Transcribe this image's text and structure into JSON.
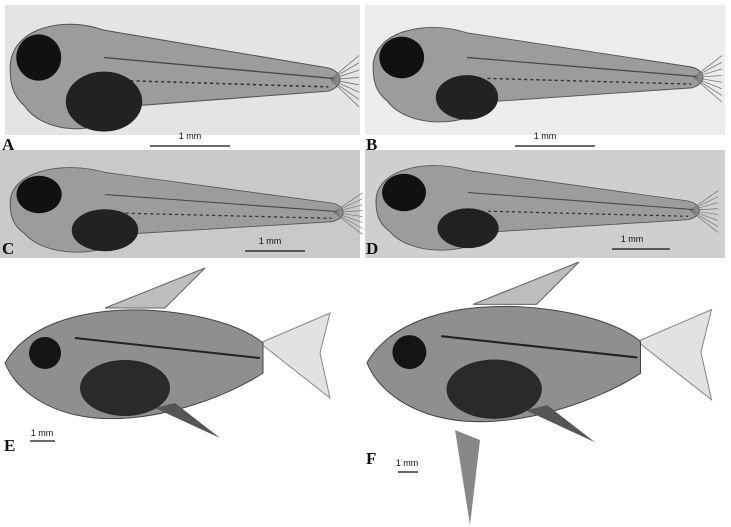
{
  "panels": [
    {
      "label": "A",
      "scale_label": "1 mm"
    },
    {
      "label": "B",
      "scale_label": "1 mm"
    },
    {
      "label": "C",
      "scale_label": "1 mm"
    },
    {
      "label": "D",
      "scale_label": "1 mm"
    },
    {
      "label": "E",
      "scale_label": "1 mm"
    },
    {
      "label": "F",
      "scale_label": "1 mm"
    }
  ]
}
